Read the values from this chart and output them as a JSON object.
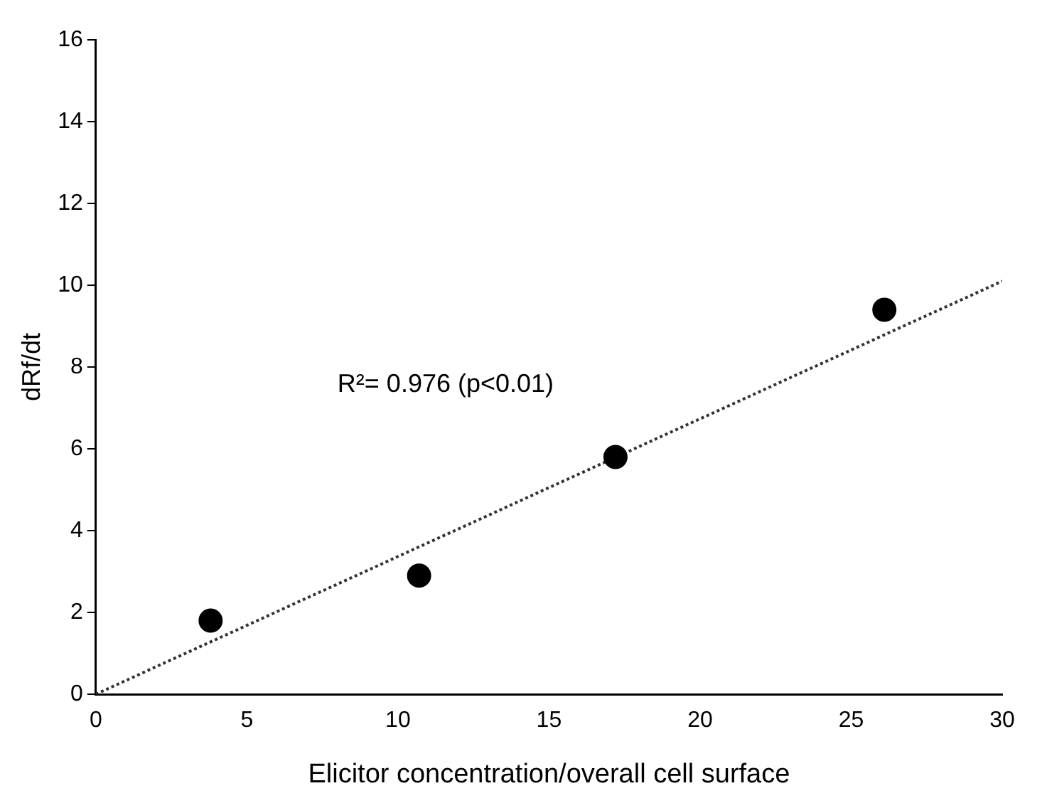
{
  "chart_data": {
    "type": "scatter",
    "xlabel": "Elicitor concentration/overall cell surface",
    "ylabel": "dRf/dt",
    "xlim": [
      0,
      30
    ],
    "ylim": [
      0,
      16
    ],
    "xticks": [
      0,
      5,
      10,
      15,
      20,
      25,
      30
    ],
    "yticks": [
      0,
      2,
      4,
      6,
      8,
      10,
      12,
      14,
      16
    ],
    "grid": false,
    "legend": false,
    "marker": "circle",
    "annotations": [
      "R²= 0.976 (p<0.01)"
    ],
    "series": [
      {
        "color": "#000000",
        "x": [
          3.8,
          10.7,
          17.2,
          26.1
        ],
        "values": [
          1.8,
          2.9,
          5.8,
          9.4
        ]
      },
      {
        "type": "line",
        "color": "#333333",
        "line_style": "dotted",
        "marker": "none",
        "x": [
          0,
          30
        ],
        "values": [
          0,
          10.1
        ]
      }
    ]
  }
}
